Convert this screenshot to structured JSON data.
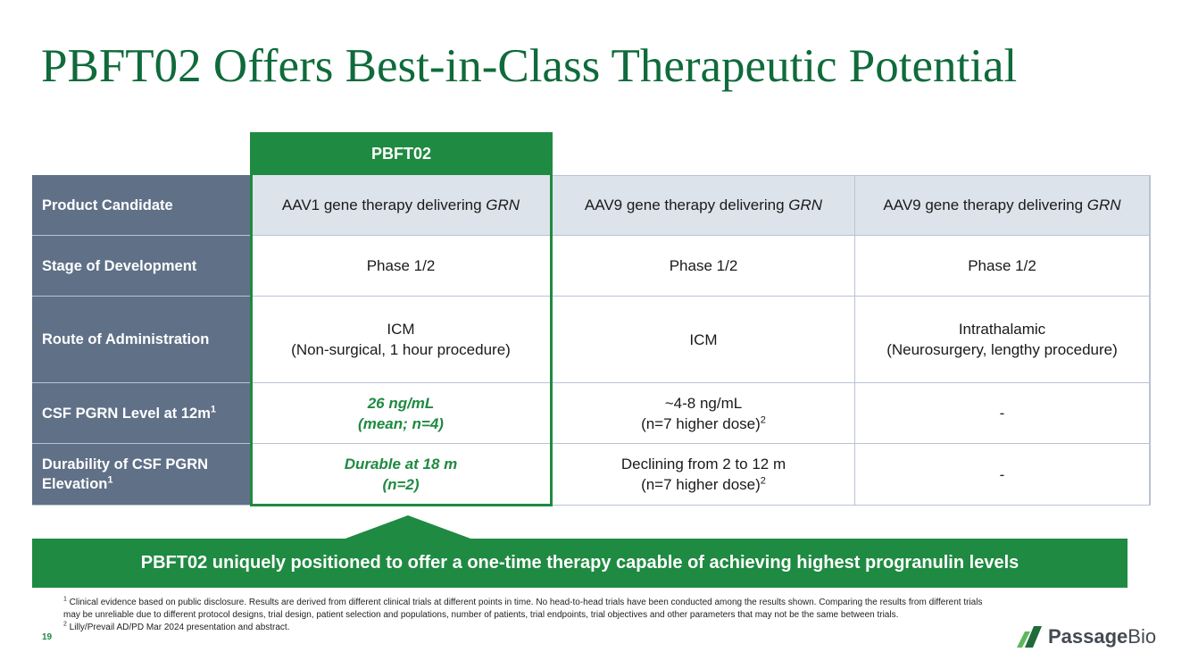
{
  "title": "PBFT02 Offers Best-in-Class Therapeutic Potential",
  "table": {
    "highlight_header": "PBFT02",
    "rows": [
      {
        "label": "Product Candidate",
        "cells": [
          {
            "prefix": "AAV1 gene therapy delivering ",
            "italic": "GRN"
          },
          {
            "prefix": "AAV9 gene therapy delivering ",
            "italic": "GRN"
          },
          {
            "prefix": "AAV9 gene therapy delivering ",
            "italic": "GRN"
          }
        ]
      },
      {
        "label": "Stage of Development",
        "cells": [
          "Phase 1/2",
          "Phase 1/2",
          "Phase 1/2"
        ]
      },
      {
        "label": "Route of Administration",
        "cells": [
          {
            "line1": "ICM",
            "line2": "(Non-surgical, 1 hour procedure)"
          },
          {
            "line1": "ICM"
          },
          {
            "line1": "Intrathalamic",
            "line2": "(Neurosurgery, lengthy procedure)"
          }
        ]
      },
      {
        "label": "CSF PGRN Level at 12m",
        "label_sup": "1",
        "cells": [
          {
            "line1": "26 ng/mL",
            "line2": "(mean; n=4)"
          },
          {
            "line1": "~4-8 ng/mL",
            "line2": "(n=7 higher dose)",
            "sup": "2"
          },
          "-"
        ]
      },
      {
        "label_line1": "Durability of CSF PGRN",
        "label_line2": "Elevation",
        "label_sup": "1",
        "cells": [
          {
            "line1": "Durable at 18 m",
            "line2": "(n=2)"
          },
          {
            "line1": "Declining from 2 to 12 m",
            "line2": "(n=7 higher dose)",
            "sup": "2"
          },
          "-"
        ]
      }
    ]
  },
  "callout": "PBFT02 uniquely positioned to offer a one-time therapy capable of achieving highest progranulin levels",
  "footnotes": {
    "note1_marker": "1",
    "note1": " Clinical evidence based on public disclosure. Results are derived from different clinical trials at different points in time. No head-to-head trials have been conducted among the results shown.  Comparing the results from different trials may be unreliable due to different protocol designs, trial design, patient selection and populations, number of patients, trial endpoints, trial objectives and other parameters that may not be the same between trials.",
    "note2_marker": "2",
    "note2": " Lilly/Prevail AD/PD Mar 2024 presentation and abstract."
  },
  "page_number": "19",
  "logo": {
    "word1": "Passage",
    "word2": "Bio",
    "colors": {
      "mark_dark": "#1f6b3a",
      "mark_light": "#5cb85c"
    }
  },
  "colors": {
    "brand_green": "#1f8a41",
    "title_green": "#0f6b3b",
    "row_label_bg": "#5f7087",
    "shaded_row_bg": "#dde3eb"
  }
}
